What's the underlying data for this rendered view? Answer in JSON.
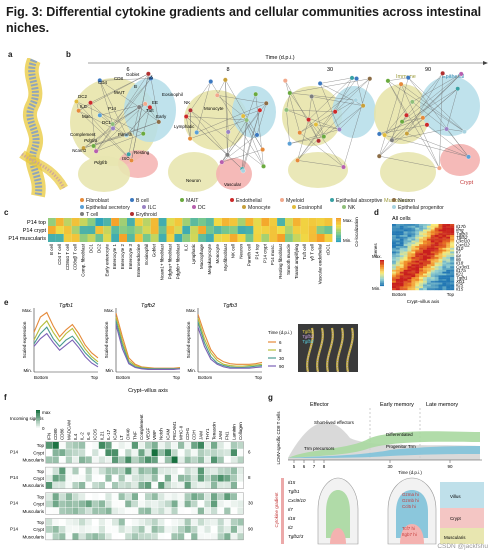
{
  "figure": {
    "title": "Fig. 3: Differential cytokine gradients and cellular communities across intestinal niches.",
    "panel_labels": [
      "a",
      "b",
      "c",
      "d",
      "e",
      "f",
      "g"
    ]
  },
  "panel_b": {
    "axis_title": "Time (d.p.i.)",
    "time_labels": [
      "6",
      "8",
      "30",
      "90"
    ],
    "zones": [
      "Immune",
      "Epithelial",
      "Muscularis",
      "Crypt"
    ],
    "node_labels": [
      "Goblet",
      "γδ",
      "CD4",
      "CD8",
      "MAIT",
      "B",
      "DC2",
      "ILC",
      "Mac.",
      "DC1",
      "P14",
      "Eosinophil",
      "EE",
      "Tuft",
      "Early",
      "NK",
      "Monocyte",
      "Complement",
      "Paneth",
      "Ncam1",
      "Pdgfra",
      "Pdgfrb",
      "Resting",
      "ISC",
      "Lymphatic",
      "Neuron",
      "Vascular"
    ],
    "colors": {
      "immune": "#e6e3a6",
      "epithelial": "#b4dde9",
      "muscularis": "#e8e6b0",
      "crypt": "#f4b2b0"
    }
  },
  "legend": {
    "items": [
      {
        "label": "Fibroblast",
        "color": "#e58a3a"
      },
      {
        "label": "B cell",
        "color": "#3b78c0"
      },
      {
        "label": "MAIT",
        "color": "#6aaa3e"
      },
      {
        "label": "Endothelial",
        "color": "#cc2a2a"
      },
      {
        "label": "Myeloid",
        "color": "#f2a98c"
      },
      {
        "label": "Epithelial absorptive",
        "color": "#39a1a3"
      },
      {
        "label": "Neuron",
        "color": "#8b6c45"
      },
      {
        "label": "Epithelial secretory",
        "color": "#5aa0d6"
      },
      {
        "label": "ILC",
        "color": "#9a82c4"
      },
      {
        "label": "DC",
        "color": "#b75fae"
      },
      {
        "label": "Monocyte",
        "color": "#c7a03a"
      },
      {
        "label": "Eosinophil",
        "color": "#e2bd3c"
      },
      {
        "label": "NK",
        "color": "#8fbf7a"
      },
      {
        "label": "Epithelial progenitor",
        "color": "#a8d3e0"
      },
      {
        "label": "T cell",
        "color": "#7d7d7d"
      },
      {
        "label": "Erythroid",
        "color": "#b03030"
      }
    ]
  },
  "panel_c": {
    "rows": [
      "P14 top",
      "P14 crypt",
      "P14 muscularis"
    ],
    "colorbar": {
      "max": "Max.",
      "min": "Min.",
      "title": "Co-localization"
    },
    "columns": [
      "B cell",
      "CD4 T cell",
      "CD8αα T cell",
      "CD8αβ T cell",
      "Comp. fibroblast",
      "DC1",
      "DC2",
      "Early enterocyte",
      "Enterocyte 1",
      "Enterocyte 2",
      "Enterocyte 3",
      "Enteroendocrine",
      "Eosinophil",
      "Goblet",
      "Ncam1+ fibroblast",
      "Pdgfra+ fibroblast",
      "Pdgfrb+ fibroblast",
      "ILC",
      "Lymphatic",
      "Macrophage",
      "Megakaryocyte",
      "Monocyte",
      "Myofibroblast",
      "NK cell",
      "Neuron",
      "Paneth cell",
      "P14 top",
      "P14 crypt",
      "P14 musc.",
      "Resting fibroblast",
      "Smooth muscle",
      "Transit amplifying",
      "Tuft cell",
      "γδ T cell",
      "Vascular endothelial",
      "cDC1"
    ]
  },
  "panel_d": {
    "title": "All cells",
    "genes": [
      "Il17b",
      "Ifng",
      "Tgfb3",
      "Tgfb2",
      "Cxcl10",
      "Cxcl12",
      "Il10",
      "Il7",
      "Il4",
      "Il6",
      "Il18",
      "Cx3cl1",
      "Il17a",
      "Il21",
      "Tgfb1",
      "Xcl1",
      "Il25",
      "Il15"
    ],
    "ylabel": "Genes",
    "colorbar": {
      "max": "Max.",
      "min": "Min."
    },
    "xticks": [
      "Bottom",
      "Top"
    ],
    "xlabel": "Crypt–villus axis"
  },
  "panel_e": {
    "xlabel": "Crypt–villus axis",
    "ylabel": "Scaled expression",
    "y_max": "Max.",
    "y_min": "Min.",
    "xticks": [
      "Bottom",
      "Top"
    ],
    "legend_title": "Time (d.p.i.)",
    "image_labels": [
      "Tgfb1",
      "Tgfb2",
      "Tgfb3"
    ]
  },
  "chart_data": [
    {
      "type": "line",
      "title": "Tgfb1",
      "xlabel": "Crypt–villus axis",
      "ylabel": "Scaled expression",
      "xlim": [
        0,
        1
      ],
      "ylim": [
        0,
        1
      ],
      "x": [
        0,
        0.1,
        0.2,
        0.3,
        0.4,
        0.5,
        0.6,
        0.7,
        0.8,
        0.9,
        1.0
      ],
      "series": [
        {
          "name": "6",
          "color": "#e58a3a",
          "values": [
            0.62,
            0.86,
            0.93,
            0.72,
            0.55,
            0.66,
            0.74,
            0.6,
            0.42,
            0.3,
            0.22
          ]
        },
        {
          "name": "8",
          "color": "#b6bd3a",
          "values": [
            0.5,
            0.7,
            0.8,
            0.62,
            0.48,
            0.6,
            0.68,
            0.52,
            0.36,
            0.24,
            0.16
          ]
        },
        {
          "name": "30",
          "color": "#4a9b8f",
          "values": [
            0.44,
            0.6,
            0.7,
            0.52,
            0.4,
            0.5,
            0.56,
            0.44,
            0.3,
            0.2,
            0.12
          ]
        },
        {
          "name": "90",
          "color": "#7b62b6",
          "values": [
            0.4,
            0.52,
            0.6,
            0.46,
            0.34,
            0.42,
            0.5,
            0.38,
            0.24,
            0.14,
            0.08
          ]
        }
      ]
    },
    {
      "type": "line",
      "title": "Tgfb2",
      "xlabel": "Crypt–villus axis",
      "ylabel": "Scaled expression",
      "xlim": [
        0,
        1
      ],
      "ylim": [
        0,
        1
      ],
      "x": [
        0,
        0.1,
        0.2,
        0.3,
        0.4,
        0.5,
        0.6,
        0.7,
        0.8,
        0.9,
        1.0
      ],
      "series": [
        {
          "name": "6",
          "color": "#e58a3a",
          "values": [
            0.92,
            0.55,
            0.22,
            0.12,
            0.08,
            0.07,
            0.06,
            0.06,
            0.06,
            0.06,
            0.07
          ]
        },
        {
          "name": "8",
          "color": "#b6bd3a",
          "values": [
            0.86,
            0.48,
            0.18,
            0.1,
            0.07,
            0.06,
            0.05,
            0.05,
            0.05,
            0.05,
            0.06
          ]
        },
        {
          "name": "30",
          "color": "#4a9b8f",
          "values": [
            0.8,
            0.42,
            0.15,
            0.08,
            0.06,
            0.05,
            0.05,
            0.05,
            0.05,
            0.05,
            0.05
          ]
        },
        {
          "name": "90",
          "color": "#7b62b6",
          "values": [
            0.74,
            0.36,
            0.13,
            0.07,
            0.05,
            0.04,
            0.04,
            0.04,
            0.04,
            0.04,
            0.05
          ]
        }
      ]
    },
    {
      "type": "line",
      "title": "Tgfb3",
      "xlabel": "Crypt–villus axis",
      "ylabel": "Scaled expression",
      "xlim": [
        0,
        1
      ],
      "ylim": [
        0,
        1
      ],
      "x": [
        0,
        0.1,
        0.2,
        0.3,
        0.4,
        0.5,
        0.6,
        0.7,
        0.8,
        0.9,
        1.0
      ],
      "series": [
        {
          "name": "6",
          "color": "#e58a3a",
          "values": [
            0.9,
            0.6,
            0.35,
            0.22,
            0.16,
            0.13,
            0.12,
            0.12,
            0.12,
            0.13,
            0.15
          ]
        },
        {
          "name": "8",
          "color": "#b6bd3a",
          "values": [
            0.84,
            0.52,
            0.3,
            0.18,
            0.12,
            0.1,
            0.09,
            0.09,
            0.1,
            0.11,
            0.12
          ]
        },
        {
          "name": "30",
          "color": "#4a9b8f",
          "values": [
            0.78,
            0.46,
            0.24,
            0.14,
            0.1,
            0.08,
            0.07,
            0.07,
            0.08,
            0.09,
            0.1
          ]
        },
        {
          "name": "90",
          "color": "#7b62b6",
          "values": [
            0.7,
            0.4,
            0.2,
            0.12,
            0.08,
            0.06,
            0.06,
            0.06,
            0.06,
            0.07,
            0.08
          ]
        }
      ]
    }
  ],
  "panel_f": {
    "colorbar_title": "Incoming signals",
    "colorbar_max": "max",
    "colorbar_min": "0",
    "columns": [
      "IFN",
      "CD80",
      "CD86",
      "MADCAM",
      "IL4",
      "IL-2",
      "IL-6",
      "ICOS",
      "IL21",
      "IL-17",
      "ICAM",
      "LT",
      "OX40",
      "TNF",
      "Complement",
      "VEGF",
      "VWF",
      "Notch",
      "ICAM",
      "PECAM1",
      "MHC-II",
      "CDH1",
      "CDH",
      "JAM",
      "THY1",
      "Tenascin",
      "JAM",
      "FN1",
      "Laminin",
      "Collagen"
    ],
    "row_groups": [
      {
        "p14": "P14",
        "time": "6",
        "rows": [
          "Top",
          "Crypt",
          "Muscularis"
        ]
      },
      {
        "p14": "P14",
        "time": "8",
        "rows": [
          "Top",
          "Crypt",
          "Muscularis"
        ]
      },
      {
        "p14": "P14",
        "time": "30",
        "rows": [
          "Top",
          "Crypt",
          "Muscularis"
        ]
      },
      {
        "p14": "P14",
        "time": "90",
        "rows": [
          "Top",
          "Crypt",
          "Muscularis"
        ]
      }
    ]
  },
  "panel_g": {
    "ylabel": "LCMV-specific CD8 T cells",
    "phases": [
      "Effector",
      "Early memory",
      "Late memory"
    ],
    "states": [
      "Short-lived effectors",
      "Differentiated",
      "Trm precursors",
      "Progenitor Trm"
    ],
    "time_ticks": [
      "5",
      "6",
      "7",
      "8",
      "30",
      "90"
    ],
    "xlabel": "Time (d.p.i.)",
    "cytokine_label": "Cytokine gradient",
    "cytokines": [
      "Il15",
      "Tgfb1",
      "Cxcl9/10",
      "Il7",
      "Il18",
      "Il2",
      "Tgfb2/3"
    ],
    "markers": [
      "Gzma hi",
      "Gzmb hi",
      "Ccl5 hi",
      "Tcf7 hi",
      "Itgb7 hi"
    ],
    "regions": [
      "Villus",
      "Crypt",
      "Muscularis"
    ]
  },
  "watermark": "CSDN @jackfshu"
}
